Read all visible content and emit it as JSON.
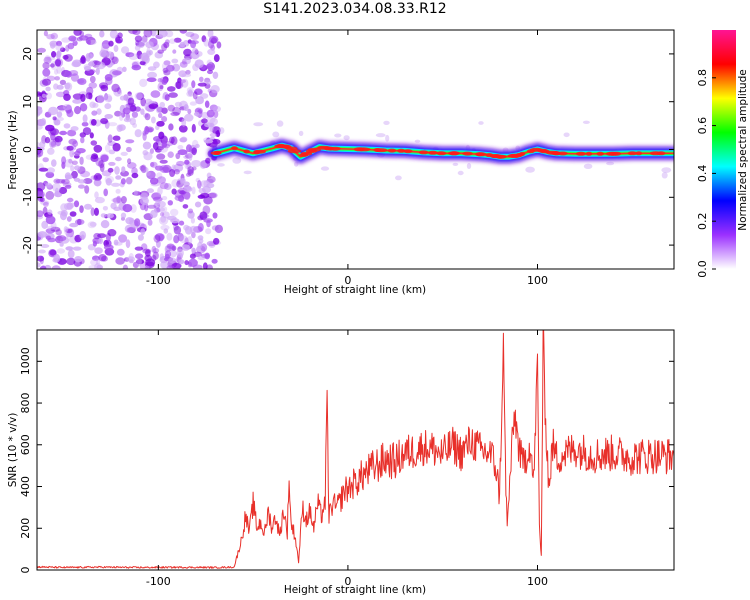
{
  "title": "S141.2023.034.08.33.R12",
  "chart_data": [
    {
      "type": "heatmap",
      "title": "S141.2023.034.08.33.R12",
      "xlabel": "Height of straight line (km)",
      "ylabel": "Frequency (Hz)",
      "xlim": [
        -164,
        172
      ],
      "ylim": [
        -25,
        25
      ],
      "x_ticks": [
        "-100",
        "0",
        "100"
      ],
      "x_tick_values": [
        -100,
        0,
        100
      ],
      "y_ticks": [
        "-20",
        "-10",
        "0",
        "10",
        "20"
      ],
      "y_tick_values": [
        -20,
        -10,
        0,
        10,
        20
      ],
      "colorbar": {
        "label": "Normalized spectral amplitude",
        "range": [
          0,
          1
        ],
        "ticks": [
          "0.0",
          "0.2",
          "0.4",
          "0.6",
          "0.8"
        ],
        "tick_values": [
          0.0,
          0.2,
          0.4,
          0.6,
          0.8
        ],
        "colormap": [
          "#ffffff",
          "#9b30ff",
          "#0000ff",
          "#00ffff",
          "#00ff00",
          "#ffff00",
          "#ff0000",
          "#ff1493"
        ]
      },
      "noise_region_x": [
        -164,
        -68
      ],
      "signal_trace": {
        "x": [
          -70,
          -60,
          -50,
          -40,
          -35,
          -30,
          -25,
          -20,
          -15,
          -10,
          0,
          10,
          20,
          30,
          40,
          50,
          60,
          70,
          75,
          80,
          85,
          90,
          95,
          100,
          105,
          110,
          120,
          130,
          140,
          150,
          160,
          172
        ],
        "y": [
          -0.8,
          0.3,
          -0.8,
          0.2,
          0.8,
          0.3,
          -1.5,
          -0.5,
          0.5,
          0.2,
          0.1,
          0.0,
          -0.2,
          -0.3,
          -0.6,
          -0.8,
          -0.8,
          -1.0,
          -1.2,
          -1.5,
          -1.5,
          -1.2,
          -0.5,
          0.0,
          -0.5,
          -0.8,
          -0.9,
          -0.9,
          -0.9,
          -0.8,
          -0.8,
          -0.8
        ]
      },
      "grid": false
    },
    {
      "type": "line",
      "xlabel": "Height of straight line (km)",
      "ylabel": "SNR (10 * v/v)",
      "xlim": [
        -164,
        172
      ],
      "ylim": [
        0,
        1150
      ],
      "x_ticks": [
        "-100",
        "0",
        "100"
      ],
      "x_tick_values": [
        -100,
        0,
        100
      ],
      "y_ticks": [
        "0",
        "200",
        "400",
        "600",
        "800",
        "1000"
      ],
      "y_tick_values": [
        0,
        200,
        400,
        600,
        800,
        1000
      ],
      "series_color": "#e8302a",
      "series": [
        {
          "x": [
            -164,
            -150,
            -130,
            -110,
            -90,
            -70,
            -60,
            -56,
            -54,
            -52,
            -50,
            -48,
            -46,
            -44,
            -42,
            -40,
            -38,
            -36,
            -34,
            -32,
            -31,
            -30,
            -28,
            -26,
            -24,
            -22,
            -20,
            -18,
            -16,
            -14,
            -12,
            -11,
            -10,
            -8,
            -6,
            -4,
            -2,
            0,
            5,
            10,
            15,
            20,
            25,
            30,
            35,
            40,
            45,
            50,
            55,
            60,
            65,
            70,
            75,
            78,
            80,
            82,
            83,
            84,
            86,
            88,
            90,
            92,
            94,
            96,
            98,
            100,
            101,
            102,
            103,
            104,
            106,
            108,
            110,
            115,
            120,
            130,
            140,
            150,
            160,
            172
          ],
          "y": [
            15,
            12,
            14,
            12,
            13,
            12,
            14,
            150,
            260,
            180,
            320,
            200,
            230,
            170,
            280,
            200,
            260,
            160,
            290,
            180,
            450,
            220,
            170,
            40,
            300,
            240,
            280,
            200,
            320,
            260,
            330,
            800,
            260,
            320,
            300,
            330,
            380,
            390,
            430,
            470,
            500,
            530,
            520,
            560,
            570,
            590,
            580,
            550,
            600,
            560,
            620,
            570,
            560,
            500,
            350,
            1080,
            530,
            200,
            520,
            750,
            600,
            500,
            550,
            600,
            420,
            1000,
            200,
            70,
            1150,
            780,
            400,
            600,
            540,
            560,
            580,
            550,
            560,
            540,
            550,
            545
          ]
        }
      ],
      "grid": false
    }
  ]
}
